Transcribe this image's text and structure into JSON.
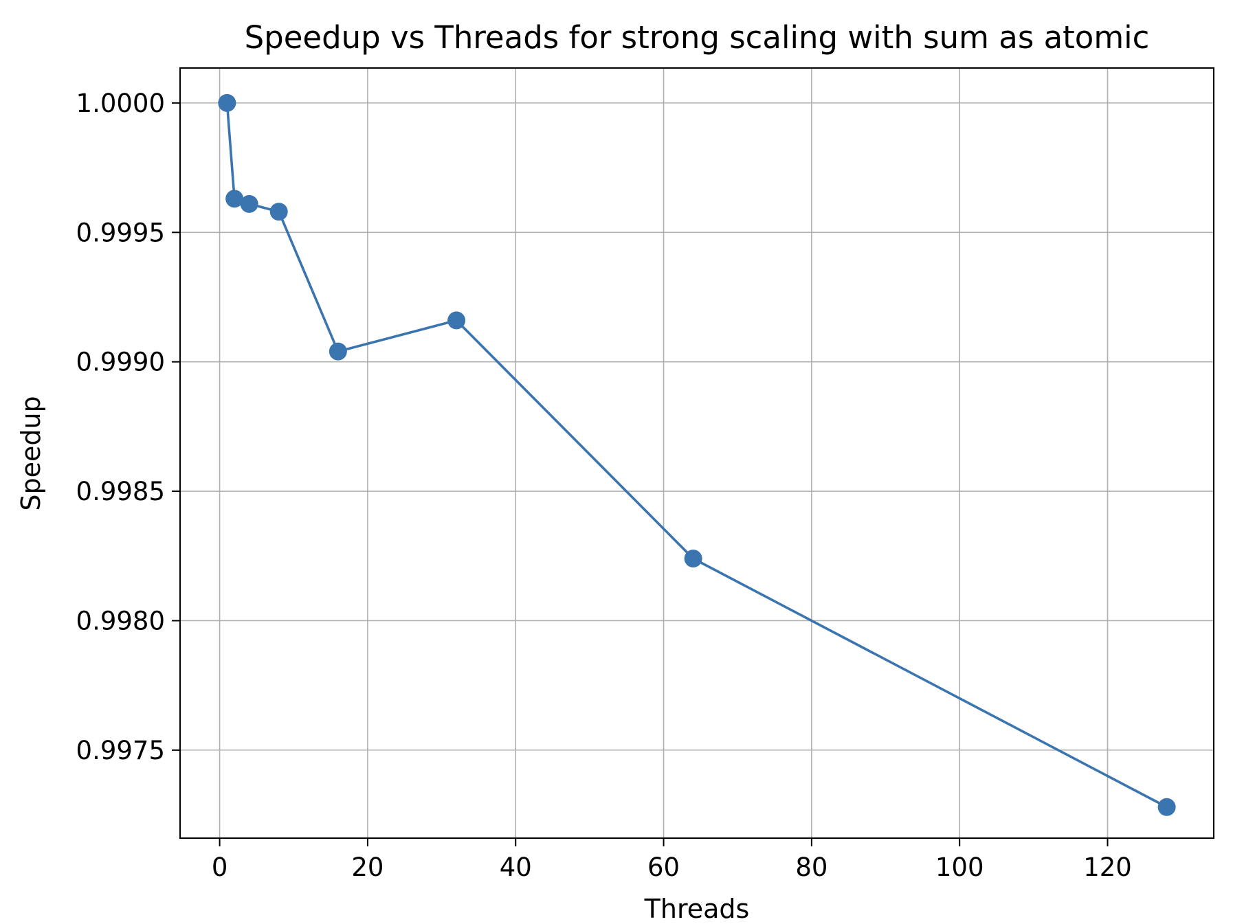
{
  "chart_data": {
    "type": "line",
    "title": "Speedup vs Threads for strong scaling with sum as atomic",
    "xlabel": "Threads",
    "ylabel": "Speedup",
    "x": [
      1,
      2,
      4,
      8,
      16,
      32,
      64,
      128
    ],
    "series": [
      {
        "values": [
          1.0,
          0.99963,
          0.99961,
          0.99958,
          0.99904,
          0.99916,
          0.99824,
          0.99728
        ]
      }
    ],
    "xlim": [
      -5.35,
      134.35
    ],
    "ylim": [
      0.99716,
      1.000135
    ],
    "xticks": [
      0,
      20,
      40,
      60,
      80,
      100,
      120
    ],
    "xtick_labels": [
      "0",
      "20",
      "40",
      "60",
      "80",
      "100",
      "120"
    ],
    "yticks": [
      0.9975,
      0.998,
      0.9985,
      0.999,
      0.9995,
      1.0
    ],
    "ytick_labels": [
      "0.9975",
      "0.9980",
      "0.9985",
      "0.9990",
      "0.9995",
      "1.0000"
    ],
    "grid": true,
    "marker": "circle",
    "colors": {
      "line": "#3b75af",
      "grid": "#b0b0b0",
      "axes": "#000000"
    }
  }
}
